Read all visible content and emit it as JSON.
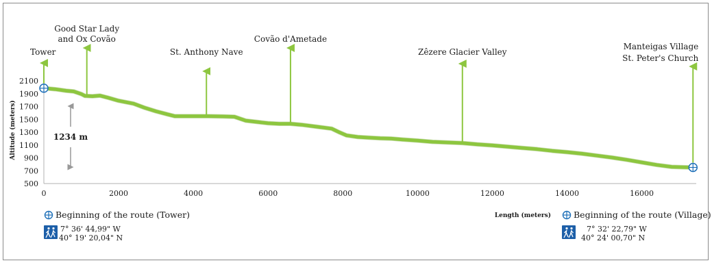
{
  "chart_data": {
    "type": "area",
    "xlabel": "Length (meters)",
    "ylabel": "Altitude (meters)",
    "xlim": [
      0,
      17400
    ],
    "ylim": [
      500,
      2100
    ],
    "x_ticks": [
      "0",
      "2000",
      "4000",
      "6000",
      "8000",
      "10000",
      "12000",
      "14000",
      "16000"
    ],
    "y_ticks": [
      "500",
      "700",
      "900",
      "1100",
      "1300",
      "1500",
      "1700",
      "1900",
      "2100"
    ],
    "grid": false,
    "line_color": "#8dc63f",
    "series": [
      {
        "x": [
          0,
          300,
          600,
          800,
          1000,
          1100,
          1300,
          1500,
          1700,
          2000,
          2400,
          2700,
          3000,
          3300,
          3500,
          4000,
          4400,
          4800,
          5100,
          5400,
          5700,
          6000,
          6300,
          6600,
          6900,
          7300,
          7700,
          7900,
          8100,
          8400,
          8700,
          9000,
          9300,
          9600,
          10000,
          10400,
          10800,
          11200,
          11600,
          12000,
          12400,
          12800,
          13200,
          13600,
          14000,
          14400,
          14800,
          15200,
          15600,
          16000,
          16400,
          16800,
          17100,
          17370
        ],
        "y": [
          1985,
          1970,
          1945,
          1935,
          1895,
          1865,
          1860,
          1870,
          1840,
          1790,
          1745,
          1680,
          1625,
          1580,
          1550,
          1550,
          1550,
          1545,
          1540,
          1480,
          1460,
          1440,
          1430,
          1430,
          1415,
          1385,
          1355,
          1300,
          1250,
          1225,
          1215,
          1205,
          1200,
          1185,
          1170,
          1150,
          1140,
          1130,
          1110,
          1095,
          1075,
          1055,
          1035,
          1010,
          990,
          965,
          935,
          905,
          870,
          830,
          790,
          760,
          755,
          751
        ]
      }
    ],
    "annotations": [
      {
        "label": "Tower",
        "x": 0
      },
      {
        "label": "Good Star Lady\nand Ox Covão",
        "x": 1150
      },
      {
        "label": "St. Anthony Nave",
        "x": 4350
      },
      {
        "label": "Covão d'Ametade",
        "x": 6600
      },
      {
        "label": "Zêzere Glacier Valley",
        "x": 11200
      },
      {
        "label": "Manteigas Village\nSt. Peter's Church",
        "x": 17370
      }
    ],
    "elevation_span_label": "1234 m",
    "start_marker": {
      "x": 0,
      "y": 1985
    },
    "end_marker": {
      "x": 17370,
      "y": 751
    }
  },
  "legend": {
    "start": {
      "title": "Beginning of the route (Tower)",
      "lon": "7° 36' 44,99\" W",
      "lat": "40° 19' 20,04\" N"
    },
    "end": {
      "title": "Beginning of the route (Village)",
      "lon": "7° 32' 22,79\" W",
      "lat": "40° 24' 00,70\" N"
    }
  },
  "colors": {
    "profile": "#8dc63f",
    "profile_dark": "#6a9e2a",
    "marker": "#1d6fb8",
    "hiker_icon_bg": "#1d5fa8",
    "span_arrow": "#999999"
  }
}
